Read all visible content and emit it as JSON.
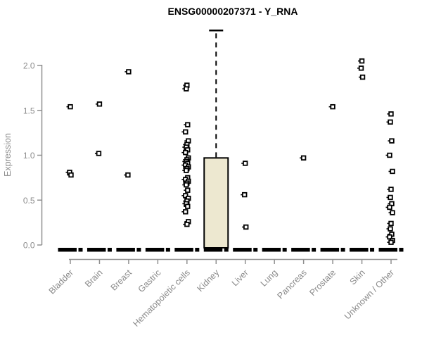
{
  "title": "ENSG00000207371 - Y_RNA",
  "chart_data": {
    "type": "boxplot",
    "title": "ENSG00000207371 - Y_RNA",
    "xlabel": "",
    "ylabel": "Expression",
    "ylim": [
      0,
      2.4
    ],
    "yticks": [
      "0.0",
      "0.5",
      "1.0",
      "1.5",
      "2.0"
    ],
    "ytick_values": [
      0,
      0.5,
      1.0,
      1.5,
      2.0
    ],
    "grid": "off",
    "legend": "none",
    "categories": [
      "Bladder",
      "Brain",
      "Breast",
      "Gastric",
      "Hematopoietic cells",
      "Kidney",
      "Liver",
      "Lung",
      "Pancreas",
      "Prostate",
      "Skin",
      "Unknown / Other"
    ],
    "zero_bar_note": "every category shows a thick black bar at expression 0 (median/box collapsed at 0)",
    "points": {
      "Bladder": [
        1.54,
        0.81,
        0.78
      ],
      "Brain": [
        1.57,
        1.02
      ],
      "Breast": [
        1.93,
        0.78
      ],
      "Gastric": [],
      "Hematopoietic cells": [
        1.78,
        1.74,
        1.34,
        1.26,
        1.16,
        1.12,
        1.09,
        1.06,
        1.03,
        0.97,
        0.95,
        0.93,
        0.91,
        0.89,
        0.87,
        0.85,
        0.83,
        0.75,
        0.73,
        0.71,
        0.69,
        0.67,
        0.61,
        0.55,
        0.52,
        0.49,
        0.46,
        0.43,
        0.37,
        0.26,
        0.23
      ],
      "Kidney": [],
      "Liver": [
        0.91,
        0.56,
        0.2
      ],
      "Lung": [],
      "Pancreas": [
        0.97
      ],
      "Prostate": [
        1.54
      ],
      "Skin": [
        2.05,
        1.97,
        1.87
      ],
      "Unknown / Other": [
        1.46,
        1.37,
        1.16,
        1.0,
        0.82,
        0.62,
        0.53,
        0.46,
        0.42,
        0.36,
        0.24,
        0.18,
        0.12,
        0.09,
        0.05,
        0.03
      ]
    },
    "box": {
      "category": "Kidney",
      "q1": 0,
      "median": 0,
      "q3": 0.97,
      "whisker_low": 0,
      "whisker_high": 2.39,
      "fill": "#EDE8D0"
    },
    "colors": {
      "axis_line": "#909090",
      "tick_text": "#8c8c8c",
      "marker": "#000000",
      "box_fill": "#EDE8D0",
      "box_border": "#000000",
      "title_text": "#000000"
    }
  }
}
